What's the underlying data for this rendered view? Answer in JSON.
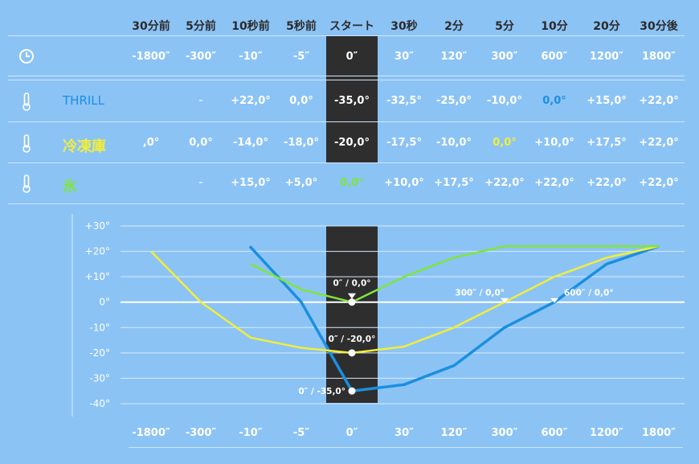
{
  "table": {
    "headers": [
      "30分前",
      "5分前",
      "10秒前",
      "5秒前",
      "スタート",
      "30秒",
      "2分",
      "5分",
      "10分",
      "20分",
      "30分後"
    ],
    "time_row": [
      "-1800″",
      "-300″",
      "-10″",
      "-5″",
      "0″",
      "30″",
      "120″",
      "300″",
      "600″",
      "1200″",
      "1800″"
    ],
    "rows": [
      {
        "label": "THRILL",
        "values": [
          "",
          "-",
          "+22,0°",
          "0,0°",
          "-35,0°",
          "-32,5°",
          "-25,0°",
          "-10,0°",
          "0,0°",
          "+15,0°",
          "+22,0°"
        ],
        "highlight_index": 8
      },
      {
        "label": "冷凍庫",
        "values": [
          ",0°",
          "0,0°",
          "-14,0°",
          "-18,0°",
          "-20,0°",
          "-17,5°",
          "-10,0°",
          "0,0°",
          "+10,0°",
          "+17,5°",
          "+22,0°"
        ],
        "highlight_index": 7
      },
      {
        "label": "氷",
        "values": [
          "",
          "-",
          "+15,0°",
          "+5,0°",
          "0,0°",
          "+10,0°",
          "+17,5°",
          "+22,0°",
          "+22,0°",
          "+22,0°",
          "+22,0°"
        ],
        "highlight_index": 4
      }
    ]
  },
  "icons": {
    "clock": "clock-icon",
    "thermometer": "thermometer-icon"
  },
  "colors": {
    "background": "#8cc3f5",
    "header_text": "#2b2b2b",
    "dark_column": "#2e2e2e",
    "thrill": "#1a8fe0",
    "freezer": "#f2ee3a",
    "ice": "#7fe63a",
    "grid": "#d6ebfc"
  },
  "chart_data": {
    "type": "line",
    "categories": [
      "-1800″",
      "-300″",
      "-10″",
      "-5″",
      "0″",
      "30″",
      "120″",
      "300″",
      "600″",
      "1200″",
      "1800″"
    ],
    "series": [
      {
        "name": "THRILL",
        "color": "#1a8fe0",
        "values": [
          null,
          null,
          22,
          0,
          -35,
          -32.5,
          -25,
          -10,
          0,
          15,
          22
        ]
      },
      {
        "name": "冷凍庫",
        "color": "#f2ee3a",
        "values": [
          20,
          0,
          -14,
          -18,
          -20,
          -17.5,
          -10,
          0,
          10,
          17.5,
          22
        ]
      },
      {
        "name": "氷",
        "color": "#7fe63a",
        "values": [
          null,
          null,
          15,
          5,
          0,
          10,
          17.5,
          22,
          22,
          22,
          22
        ]
      }
    ],
    "y_ticks": [
      "+30°",
      "+20°",
      "+10°",
      "0°",
      "-10°",
      "-20°",
      "-30°",
      "-40°"
    ],
    "y_tick_values": [
      30,
      20,
      10,
      0,
      -10,
      -20,
      -30,
      -40
    ],
    "ylim": [
      -40,
      30
    ],
    "grid": true,
    "highlight_category": "0″",
    "annotations": [
      {
        "text": "0″ / 0,0°",
        "x": "0″",
        "y": 0
      },
      {
        "text": "0″ / -20,0°",
        "x": "0″",
        "y": -20
      },
      {
        "text": "0″ / -35,0°",
        "x": "0″",
        "y": -35
      },
      {
        "text": "300″ / 0,0°",
        "x": "300″",
        "y": 0
      },
      {
        "text": "600″ / 0,0°",
        "x": "600″",
        "y": 0
      }
    ]
  }
}
